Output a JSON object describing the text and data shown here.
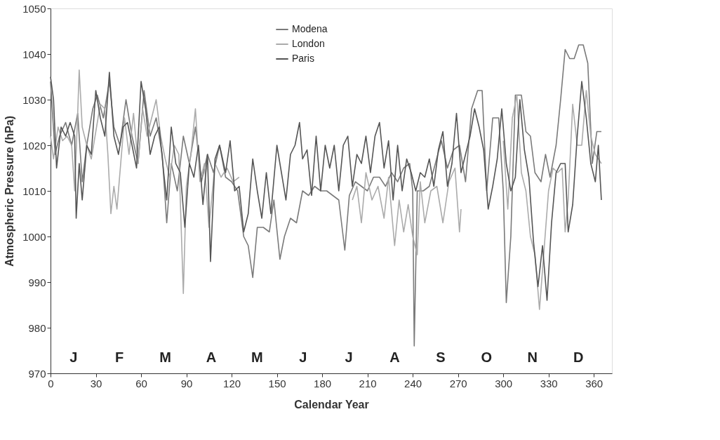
{
  "chart_data": {
    "type": "line",
    "xlabel": "Calendar Year",
    "ylabel": "Atmospheric Pressure (hPa)",
    "xlim": [
      0,
      372
    ],
    "xticks": [
      0,
      30,
      60,
      90,
      120,
      150,
      180,
      210,
      240,
      270,
      300,
      330,
      360
    ],
    "ylim": [
      970,
      1050
    ],
    "yticks": [
      970,
      980,
      990,
      1000,
      1010,
      1020,
      1030,
      1040,
      1050
    ],
    "grid": false,
    "legend": "top",
    "marker": "none",
    "line_style": "solid",
    "series": [
      {
        "name": "Modena",
        "color": "#7a7a7a",
        "x": [
          0,
          3,
          6,
          10,
          14,
          18,
          21,
          24,
          28,
          31,
          35,
          39,
          42,
          46,
          50,
          54,
          58,
          62,
          66,
          70,
          74,
          77,
          80,
          84,
          88,
          92,
          96,
          100,
          104,
          108,
          112,
          116,
          120,
          124,
          128,
          131,
          134,
          137,
          141,
          145,
          148,
          152,
          155,
          159,
          163,
          167,
          171,
          175,
          179,
          183,
          187,
          191,
          195,
          198,
          202,
          206,
          210,
          214,
          218,
          222,
          226,
          230,
          234,
          238,
          240,
          241,
          243,
          247,
          251,
          255,
          259,
          263,
          267,
          271,
          275,
          279,
          283,
          286,
          289,
          293,
          297,
          300,
          302,
          305,
          308,
          312,
          315,
          318,
          321,
          325,
          328,
          331,
          335,
          338,
          341,
          344,
          347,
          350,
          353,
          356,
          359,
          362,
          365
        ],
        "values": [
          1034,
          1018,
          1022,
          1025,
          1020,
          1027,
          1012,
          1020,
          1028,
          1031,
          1026,
          1034,
          1024,
          1020,
          1030,
          1022,
          1016,
          1032,
          1022,
          1026,
          1018,
          1003,
          1016,
          1010,
          1022,
          1016,
          1024,
          1012,
          1018,
          1014,
          1020,
          1013,
          1012,
          1010,
          1000,
          998,
          991,
          1002,
          1002,
          1001,
          1008,
          995,
          1000,
          1004,
          1003,
          1010,
          1009,
          1011,
          1010,
          1010,
          1009,
          1008,
          997,
          1009,
          1012,
          1011,
          1010,
          1013,
          1013,
          1011,
          1014,
          1012,
          1015,
          1016,
          1010,
          976,
          1010,
          1010,
          1011,
          1016,
          1021,
          1015,
          1019,
          1020,
          1012,
          1028,
          1032,
          1032,
          1010,
          1026,
          1026,
          1010,
          985.5,
          1000,
          1031,
          1031,
          1023,
          1022,
          1014,
          1012,
          1018,
          1013,
          1020,
          1030,
          1041,
          1039,
          1039,
          1042,
          1042,
          1038,
          1016,
          1023,
          1023
        ]
      },
      {
        "name": "London",
        "color": "#ababab",
        "x": [
          0,
          2,
          5,
          8,
          11,
          14,
          16,
          18,
          19,
          21,
          24,
          27,
          30,
          33,
          36,
          38,
          40,
          42,
          44,
          46,
          49,
          52,
          55,
          58,
          61,
          64,
          67,
          70,
          73,
          76,
          79,
          82,
          85,
          88,
          90,
          93,
          96,
          99,
          102,
          105,
          109,
          113,
          117,
          121,
          125,
          160,
          200,
          203,
          206,
          209,
          213,
          217,
          221,
          224,
          228,
          231,
          234,
          237,
          240,
          243,
          245,
          248,
          252,
          256,
          260,
          264,
          268,
          271,
          272,
          285,
          300,
          303,
          306,
          309,
          312,
          315,
          318,
          321,
          324,
          327,
          330,
          333,
          336,
          339,
          341,
          343,
          346,
          349,
          352,
          355,
          358,
          361,
          365
        ],
        "values": [
          1022,
          1017,
          1024,
          1021,
          1022,
          1020,
          1010,
          1027,
          1036.5,
          1024,
          1020,
          1017,
          1023,
          1029,
          1028,
          1018,
          1005,
          1011,
          1006,
          1014,
          1026,
          1018,
          1027,
          1016,
          1028,
          1022,
          1026,
          1030,
          1022,
          1017,
          1013,
          1020,
          1018,
          987.5,
          1011,
          1018,
          1028,
          1012,
          1016,
          1002,
          1016,
          1013,
          1015,
          1012,
          1013,
          null,
          1008,
          1011,
          1003,
          1014,
          1008,
          1011,
          1004,
          1013,
          998,
          1008,
          1001,
          1007,
          1000,
          996,
          1012,
          1003,
          1010,
          1011,
          1003,
          1012,
          1015,
          1001,
          1006,
          null,
          1021,
          1006,
          1026,
          1031,
          1014,
          1010,
          1000,
          996,
          984,
          997,
          1010,
          1015,
          1014,
          1015,
          1001,
          1008,
          1029,
          1020,
          1020,
          1032,
          1022,
          1018,
          1016
        ]
      },
      {
        "name": "Paris",
        "color": "#555555",
        "x": [
          0,
          2,
          4,
          7,
          10,
          13,
          16,
          17,
          19,
          21,
          24,
          27,
          30,
          33,
          36,
          39,
          42,
          45,
          48,
          51,
          54,
          57,
          60,
          63,
          66,
          69,
          72,
          75,
          77,
          80,
          83,
          86,
          89,
          92,
          95,
          98,
          101,
          104,
          106,
          109,
          112,
          116,
          119,
          122,
          125,
          128,
          131,
          134,
          137,
          140,
          143,
          146,
          150,
          153,
          156,
          159,
          162,
          165,
          167,
          170,
          173,
          176,
          179,
          182,
          185,
          188,
          191,
          194,
          197,
          200,
          203,
          206,
          209,
          212,
          215,
          218,
          221,
          224,
          227,
          230,
          233,
          236,
          239,
          242,
          245,
          248,
          251,
          254,
          257,
          260,
          263,
          266,
          269,
          272,
          275,
          278,
          281,
          284,
          287,
          290,
          293,
          296,
          299,
          302,
          305,
          308,
          311,
          314,
          317,
          320,
          323,
          326,
          329,
          332,
          335,
          338,
          341,
          343,
          346,
          349,
          352,
          355,
          358,
          361,
          363,
          365
        ],
        "values": [
          1035,
          1030,
          1015,
          1024,
          1022,
          1025,
          1022,
          1004,
          1016,
          1008,
          1020,
          1018,
          1032,
          1026,
          1022,
          1036,
          1022,
          1018,
          1024,
          1025,
          1020,
          1015,
          1034,
          1028,
          1018,
          1022,
          1024,
          1014,
          1008,
          1024,
          1016,
          1014,
          1002,
          1016,
          1013,
          1020,
          1007,
          1018,
          994.5,
          1017,
          1020,
          1014,
          1021,
          1010,
          1011,
          1001,
          1005,
          1017,
          1010,
          1004,
          1014,
          1005,
          1020,
          1014,
          1008,
          1018,
          1020,
          1025,
          1017,
          1019,
          1009,
          1022,
          1010,
          1020,
          1015,
          1020,
          1010,
          1020,
          1022,
          1011,
          1018,
          1016,
          1022,
          1014,
          1022,
          1025,
          1015,
          1021,
          1008,
          1020,
          1010,
          1017,
          1014,
          1010,
          1014,
          1013,
          1017,
          1011,
          1019,
          1023,
          1011,
          1016,
          1027,
          1014,
          1018,
          1022,
          1028,
          1024,
          1019,
          1006,
          1011,
          1017,
          1028,
          1016,
          1010,
          1013,
          1030,
          1019,
          1013,
          999,
          989,
          998,
          986,
          1003,
          1014,
          1016,
          1016,
          1001,
          1007,
          1022,
          1034,
          1026,
          1016,
          1012,
          1020,
          1008
        ]
      }
    ],
    "annotations": [
      "J",
      "F",
      "M",
      "A",
      "M",
      "J",
      "J",
      "A",
      "S",
      "O",
      "N",
      "D"
    ]
  }
}
